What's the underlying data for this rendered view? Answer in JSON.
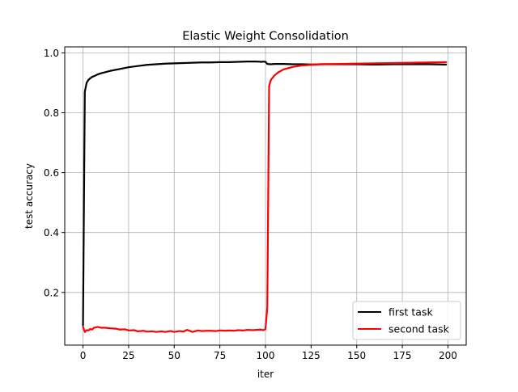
{
  "chart_data": {
    "type": "line",
    "title": "Elastic Weight Consolidation",
    "xlabel": "iter",
    "ylabel": "test accuracy",
    "xlim": [
      -10,
      210
    ],
    "ylim": [
      0.024,
      1.02
    ],
    "xticks": [
      0,
      25,
      50,
      75,
      100,
      125,
      150,
      175,
      200
    ],
    "yticks": [
      0.2,
      0.4,
      0.6,
      0.8,
      1.0
    ],
    "xtick_labels": [
      "0",
      "25",
      "50",
      "75",
      "100",
      "125",
      "150",
      "175",
      "200"
    ],
    "ytick_labels": [
      "0.2",
      "0.4",
      "0.6",
      "0.8",
      "1.0"
    ],
    "grid": true,
    "legend_position": "lower right",
    "series": [
      {
        "name": "first task",
        "color": "#000000",
        "x": [
          0,
          1,
          2,
          3,
          4,
          5,
          6,
          8,
          10,
          12,
          15,
          20,
          25,
          30,
          35,
          40,
          45,
          50,
          55,
          60,
          65,
          70,
          75,
          80,
          85,
          90,
          95,
          98,
          99,
          100,
          101,
          103,
          105,
          110,
          115,
          120,
          125,
          130,
          140,
          150,
          160,
          170,
          180,
          190,
          199
        ],
        "y": [
          0.09,
          0.87,
          0.9,
          0.91,
          0.915,
          0.92,
          0.922,
          0.928,
          0.932,
          0.935,
          0.94,
          0.946,
          0.952,
          0.956,
          0.96,
          0.962,
          0.964,
          0.965,
          0.966,
          0.967,
          0.968,
          0.968,
          0.969,
          0.969,
          0.97,
          0.971,
          0.971,
          0.97,
          0.971,
          0.97,
          0.963,
          0.962,
          0.963,
          0.963,
          0.962,
          0.962,
          0.961,
          0.962,
          0.962,
          0.962,
          0.961,
          0.962,
          0.962,
          0.962,
          0.961
        ]
      },
      {
        "name": "second task",
        "color": "#ff0000",
        "x": [
          0,
          1,
          2,
          3,
          4,
          5,
          6,
          8,
          10,
          12,
          15,
          18,
          20,
          23,
          25,
          28,
          30,
          33,
          35,
          38,
          40,
          43,
          45,
          48,
          50,
          53,
          55,
          57,
          60,
          63,
          65,
          68,
          70,
          73,
          75,
          78,
          80,
          83,
          85,
          88,
          90,
          93,
          95,
          97,
          99,
          100,
          101,
          102,
          103,
          105,
          107,
          110,
          115,
          120,
          125,
          130,
          140,
          150,
          160,
          170,
          180,
          190,
          199
        ],
        "y": [
          0.086,
          0.068,
          0.074,
          0.073,
          0.078,
          0.076,
          0.082,
          0.085,
          0.082,
          0.082,
          0.08,
          0.079,
          0.076,
          0.077,
          0.073,
          0.074,
          0.07,
          0.072,
          0.069,
          0.07,
          0.068,
          0.07,
          0.068,
          0.071,
          0.068,
          0.071,
          0.069,
          0.075,
          0.068,
          0.073,
          0.071,
          0.072,
          0.072,
          0.071,
          0.073,
          0.072,
          0.073,
          0.072,
          0.074,
          0.073,
          0.075,
          0.074,
          0.075,
          0.076,
          0.074,
          0.078,
          0.15,
          0.89,
          0.91,
          0.925,
          0.935,
          0.945,
          0.953,
          0.958,
          0.96,
          0.962,
          0.963,
          0.964,
          0.965,
          0.966,
          0.967,
          0.968,
          0.969
        ]
      }
    ]
  }
}
